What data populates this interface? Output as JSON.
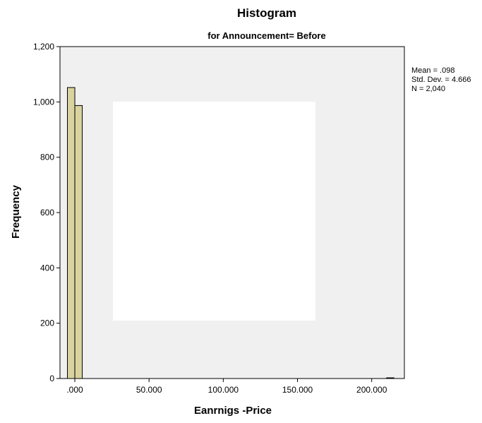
{
  "chart_data": {
    "type": "bar",
    "title": "Histogram",
    "subtitle": "for Announcement= Before",
    "xlabel": "Eanrnigs -Price",
    "ylabel": "Frequency",
    "xlim": [
      -10,
      222
    ],
    "ylim": [
      0,
      1200
    ],
    "x_ticks": [
      0,
      50,
      100,
      150,
      200
    ],
    "x_tick_labels": [
      ".000",
      "50.000",
      "100.000",
      "150.000",
      "200.000"
    ],
    "y_ticks": [
      0,
      200,
      400,
      600,
      800,
      1000,
      1200
    ],
    "y_tick_labels": [
      "0",
      "200",
      "400",
      "600",
      "800",
      "1,000",
      "1,200"
    ],
    "bin_width": 5,
    "bins": [
      {
        "start": -5,
        "count": 1052
      },
      {
        "start": 0,
        "count": 987
      },
      {
        "start": 210,
        "count": 1
      }
    ],
    "bar_color": "#d9d3a0",
    "plot_background": "#f0f0f0",
    "grid": false,
    "stats": {
      "mean": "Mean = .098",
      "std_dev": "Std. Dev. = 4.666",
      "n": "N = 2,040"
    }
  }
}
